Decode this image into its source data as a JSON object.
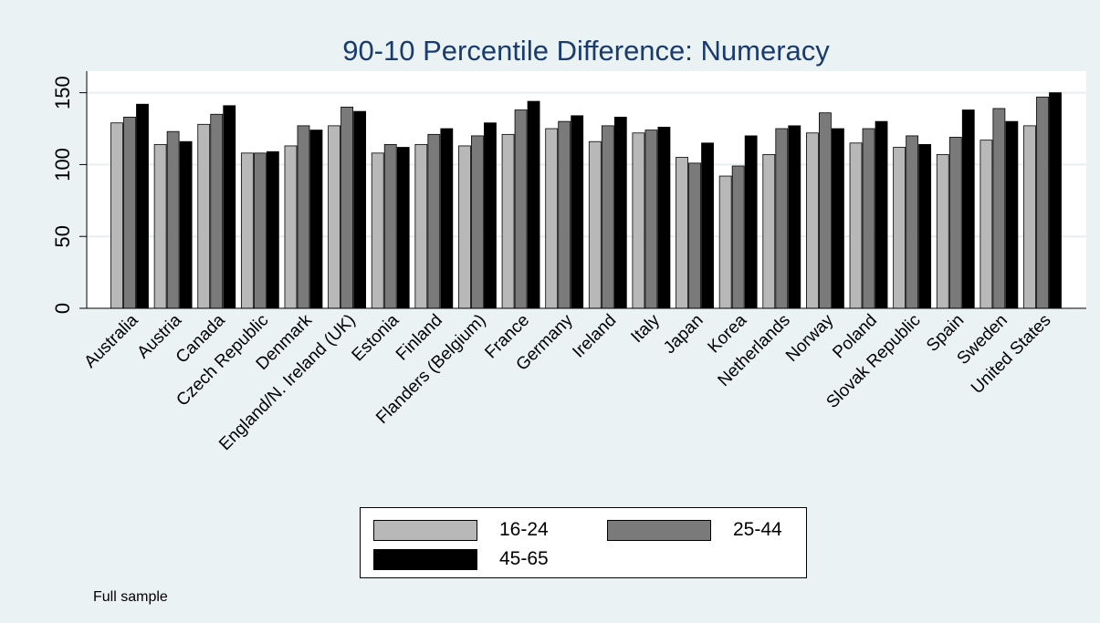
{
  "chart_data": {
    "type": "bar",
    "title": "90-10 Percentile Difference: Numeracy",
    "xlabel": "",
    "ylabel": "",
    "ylim": [
      0,
      165
    ],
    "yticks": [
      0,
      50,
      100,
      150
    ],
    "grid": true,
    "legend_position": "bottom",
    "categories": [
      "Australia",
      "Austria",
      "Canada",
      "Czech Republic",
      "Denmark",
      "England/N. Ireland (UK)",
      "Estonia",
      "Finland",
      "Flanders (Belgium)",
      "France",
      "Germany",
      "Ireland",
      "Italy",
      "Japan",
      "Korea",
      "Netherlands",
      "Norway",
      "Poland",
      "Slovak Republic",
      "Spain",
      "Sweden",
      "United States"
    ],
    "series": [
      {
        "name": "16-24",
        "color": "#b8b8b8",
        "values": [
          129,
          114,
          128,
          108,
          113,
          127,
          108,
          114,
          113,
          121,
          125,
          116,
          122,
          105,
          92,
          107,
          122,
          115,
          112,
          107,
          117,
          127
        ]
      },
      {
        "name": "25-44",
        "color": "#7a7a7a",
        "values": [
          133,
          123,
          135,
          108,
          127,
          140,
          114,
          121,
          120,
          138,
          130,
          127,
          124,
          101,
          99,
          125,
          136,
          125,
          120,
          119,
          139,
          147
        ]
      },
      {
        "name": "45-65",
        "color": "#000000",
        "values": [
          142,
          116,
          141,
          109,
          124,
          137,
          112,
          125,
          129,
          144,
          134,
          133,
          126,
          115,
          120,
          127,
          125,
          130,
          114,
          138,
          130,
          150
        ]
      }
    ],
    "note": "Full sample"
  }
}
